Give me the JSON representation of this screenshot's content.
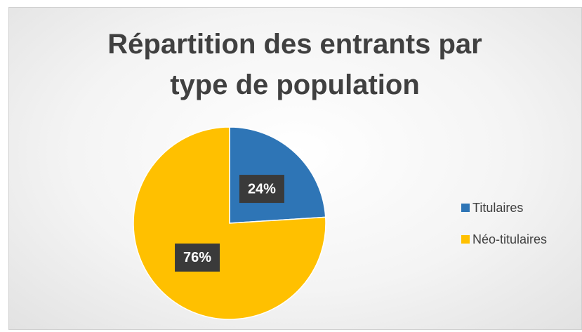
{
  "chart_data": {
    "type": "pie",
    "title": "Répartition des entrants par type de population",
    "categories": [
      "Titulaires",
      "Néo-titulaires"
    ],
    "values": [
      24,
      76
    ],
    "value_labels": [
      "24%",
      "76%"
    ],
    "colors": [
      "#2e75b6",
      "#ffc000"
    ],
    "legend": "right"
  }
}
